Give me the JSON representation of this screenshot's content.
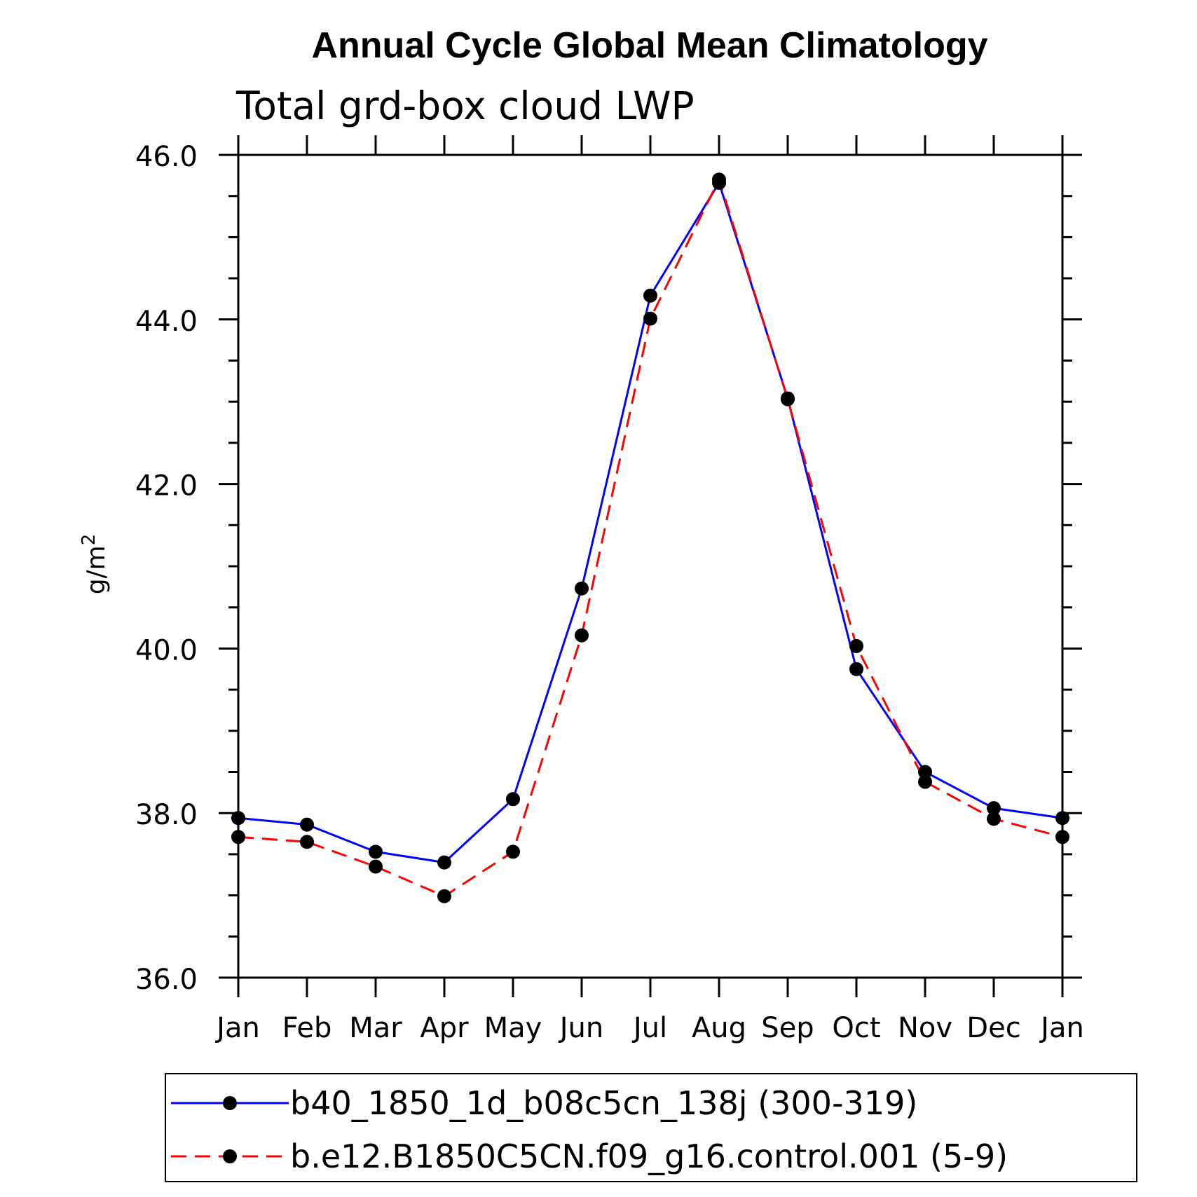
{
  "chart_data": {
    "type": "line",
    "title": "Annual Cycle Global Mean Climatology",
    "subtitle": "Total grd-box cloud LWP",
    "ylabel": "g/m",
    "ylabel_sup": "2",
    "xlabel": "",
    "ylim": [
      36.0,
      46.0
    ],
    "yticks": [
      "36.0",
      "38.0",
      "40.0",
      "42.0",
      "44.0",
      "46.0"
    ],
    "categories": [
      "Jan",
      "Feb",
      "Mar",
      "Apr",
      "May",
      "Jun",
      "Jul",
      "Aug",
      "Sep",
      "Oct",
      "Nov",
      "Dec",
      "Jan"
    ],
    "series": [
      {
        "name": "b40_1850_1d_b08c5cn_138j (300-319)",
        "color": "#0000ff",
        "dash": "solid",
        "values": [
          37.94,
          37.86,
          37.53,
          37.4,
          38.17,
          40.73,
          44.29,
          45.66,
          43.04,
          39.75,
          38.5,
          38.06,
          37.94
        ]
      },
      {
        "name": "b.e12.B1850C5CN.f09_g16.control.001 (5-9)",
        "color": "#ff0000",
        "dash": "dashed",
        "values": [
          37.71,
          37.65,
          37.35,
          36.99,
          37.53,
          40.16,
          44.01,
          45.7,
          43.03,
          40.03,
          38.38,
          37.93,
          37.71
        ]
      }
    ]
  }
}
